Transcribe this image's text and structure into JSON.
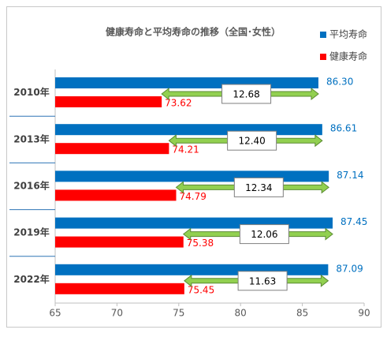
{
  "chart_data": {
    "type": "bar",
    "orientation": "horizontal",
    "title": "健康寿命と平均寿命の推移（全国･女性）",
    "categories": [
      "2010年",
      "2013年",
      "2016年",
      "2019年",
      "2022年"
    ],
    "series": [
      {
        "name": "平均寿命",
        "color": "#0070c0",
        "values": [
          86.3,
          86.61,
          87.14,
          87.45,
          87.09
        ],
        "value_labels": [
          "86.30",
          "86.61",
          "87.14",
          "87.45",
          "87.09"
        ],
        "label_color": "#0070c0"
      },
      {
        "name": "健康寿命",
        "color": "#ff0000",
        "values": [
          73.62,
          74.21,
          74.79,
          75.38,
          75.45
        ],
        "label_color": "#ff0000"
      }
    ],
    "annotations": [
      "12.68",
      "12.40",
      "12.34",
      "12.06",
      "11.63"
    ],
    "annotation_color": "#92d050",
    "xlim": [
      65,
      90
    ],
    "xticks": [
      65,
      70,
      75,
      80,
      85,
      90
    ],
    "legend": "top-right"
  }
}
